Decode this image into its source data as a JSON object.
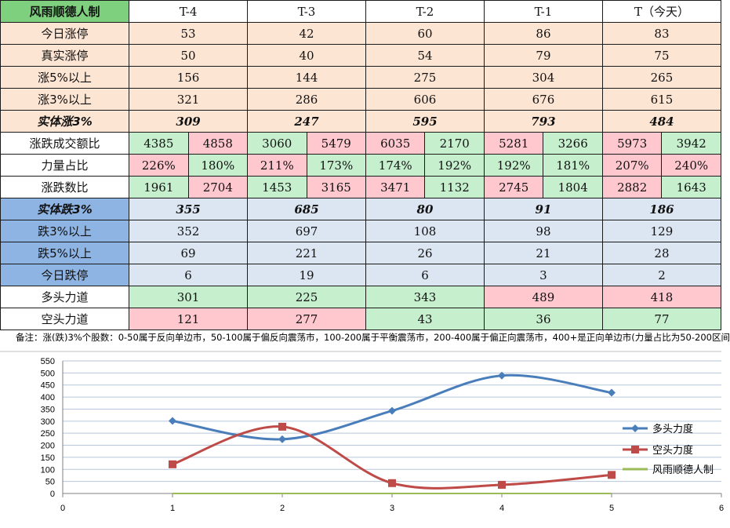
{
  "table": {
    "header": [
      "风雨顺德人制",
      "T-4",
      "T-3",
      "T-2",
      "T-1",
      "T（今天）"
    ],
    "rise_rows": [
      {
        "label": "今日涨停",
        "values": [
          "53",
          "42",
          "60",
          "86",
          "83"
        ]
      },
      {
        "label": "真实涨停",
        "values": [
          "50",
          "40",
          "54",
          "79",
          "75"
        ]
      },
      {
        "label": "涨5%以上",
        "values": [
          "156",
          "144",
          "275",
          "304",
          "265"
        ]
      },
      {
        "label": "涨3%以上",
        "values": [
          "321",
          "286",
          "606",
          "676",
          "615"
        ]
      }
    ],
    "solid_rise": {
      "label": "实体涨3%",
      "values": [
        "309",
        "247",
        "595",
        "793",
        "484"
      ]
    },
    "pair_rows": [
      {
        "label": "涨跌成交额比",
        "values": [
          [
            "4385",
            "4858"
          ],
          [
            "3060",
            "5479"
          ],
          [
            "6035",
            "2170"
          ],
          [
            "5281",
            "3266"
          ],
          [
            "5973",
            "3942"
          ]
        ],
        "colors": [
          [
            "g",
            "r"
          ],
          [
            "g",
            "r"
          ],
          [
            "r",
            "g"
          ],
          [
            "r",
            "g"
          ],
          [
            "r",
            "g"
          ]
        ]
      },
      {
        "label": "力量占比",
        "values": [
          [
            "226%",
            "180%"
          ],
          [
            "211%",
            "173%"
          ],
          [
            "174%",
            "192%"
          ],
          [
            "192%",
            "181%"
          ],
          [
            "207%",
            "240%"
          ]
        ],
        "colors": [
          [
            "r",
            "g"
          ],
          [
            "r",
            "g"
          ],
          [
            "g",
            "g"
          ],
          [
            "g",
            "g"
          ],
          [
            "r",
            "r"
          ]
        ]
      },
      {
        "label": "涨跌数比",
        "values": [
          [
            "1961",
            "2704"
          ],
          [
            "1453",
            "3165"
          ],
          [
            "3471",
            "1132"
          ],
          [
            "2745",
            "1804"
          ],
          [
            "2882",
            "1643"
          ]
        ],
        "colors": [
          [
            "g",
            "r"
          ],
          [
            "g",
            "r"
          ],
          [
            "r",
            "g"
          ],
          [
            "r",
            "g"
          ],
          [
            "r",
            "g"
          ]
        ]
      }
    ],
    "solid_fall": {
      "label": "实体跌3%",
      "values": [
        "355",
        "685",
        "80",
        "91",
        "186"
      ]
    },
    "fall_rows": [
      {
        "label": "跌3%以上",
        "values": [
          "352",
          "697",
          "108",
          "98",
          "129"
        ]
      },
      {
        "label": "跌5%以上",
        "values": [
          "69",
          "221",
          "26",
          "21",
          "28"
        ]
      },
      {
        "label": "今日跌停",
        "values": [
          "6",
          "19",
          "6",
          "3",
          "2"
        ]
      }
    ],
    "force_rows": [
      {
        "label": "多头力道",
        "values": [
          "301",
          "225",
          "343",
          "489",
          "418"
        ],
        "colors": [
          "g",
          "g",
          "g",
          "r",
          "r"
        ]
      },
      {
        "label": "空头力道",
        "values": [
          "121",
          "277",
          "43",
          "36",
          "77"
        ],
        "colors": [
          "r",
          "r",
          "g",
          "g",
          "g"
        ]
      }
    ]
  },
  "note": "备注：涨(跌)3%个股数：0-50属于反向单边市，50-100属于偏反向震荡市，100-200属于平衡震荡市，200-400属于偏正向震荡市，400+是正向单边市(力量占比为50-200区间",
  "colors": {
    "bull": "#4a7ebb",
    "bear": "#be4b48",
    "third": "#9bbb59",
    "grid": "#b7c6dc"
  },
  "chart_data": {
    "type": "line",
    "x": [
      1,
      2,
      3,
      4,
      5
    ],
    "series": [
      {
        "name": "多头力度",
        "values": [
          301,
          225,
          343,
          489,
          418
        ]
      },
      {
        "name": "空头力度",
        "values": [
          121,
          277,
          43,
          36,
          77
        ]
      },
      {
        "name": "风雨顺德人制",
        "values": [
          0,
          0,
          0,
          0,
          0
        ]
      }
    ],
    "xlim": [
      0,
      6
    ],
    "ylim": [
      0,
      550
    ],
    "xticks": [
      "0",
      "1",
      "2",
      "3",
      "4",
      "5",
      "6"
    ],
    "yticks": [
      "0",
      "50",
      "100",
      "150",
      "200",
      "250",
      "300",
      "350",
      "400",
      "450",
      "500",
      "550"
    ],
    "grid": true,
    "legend": "right"
  }
}
